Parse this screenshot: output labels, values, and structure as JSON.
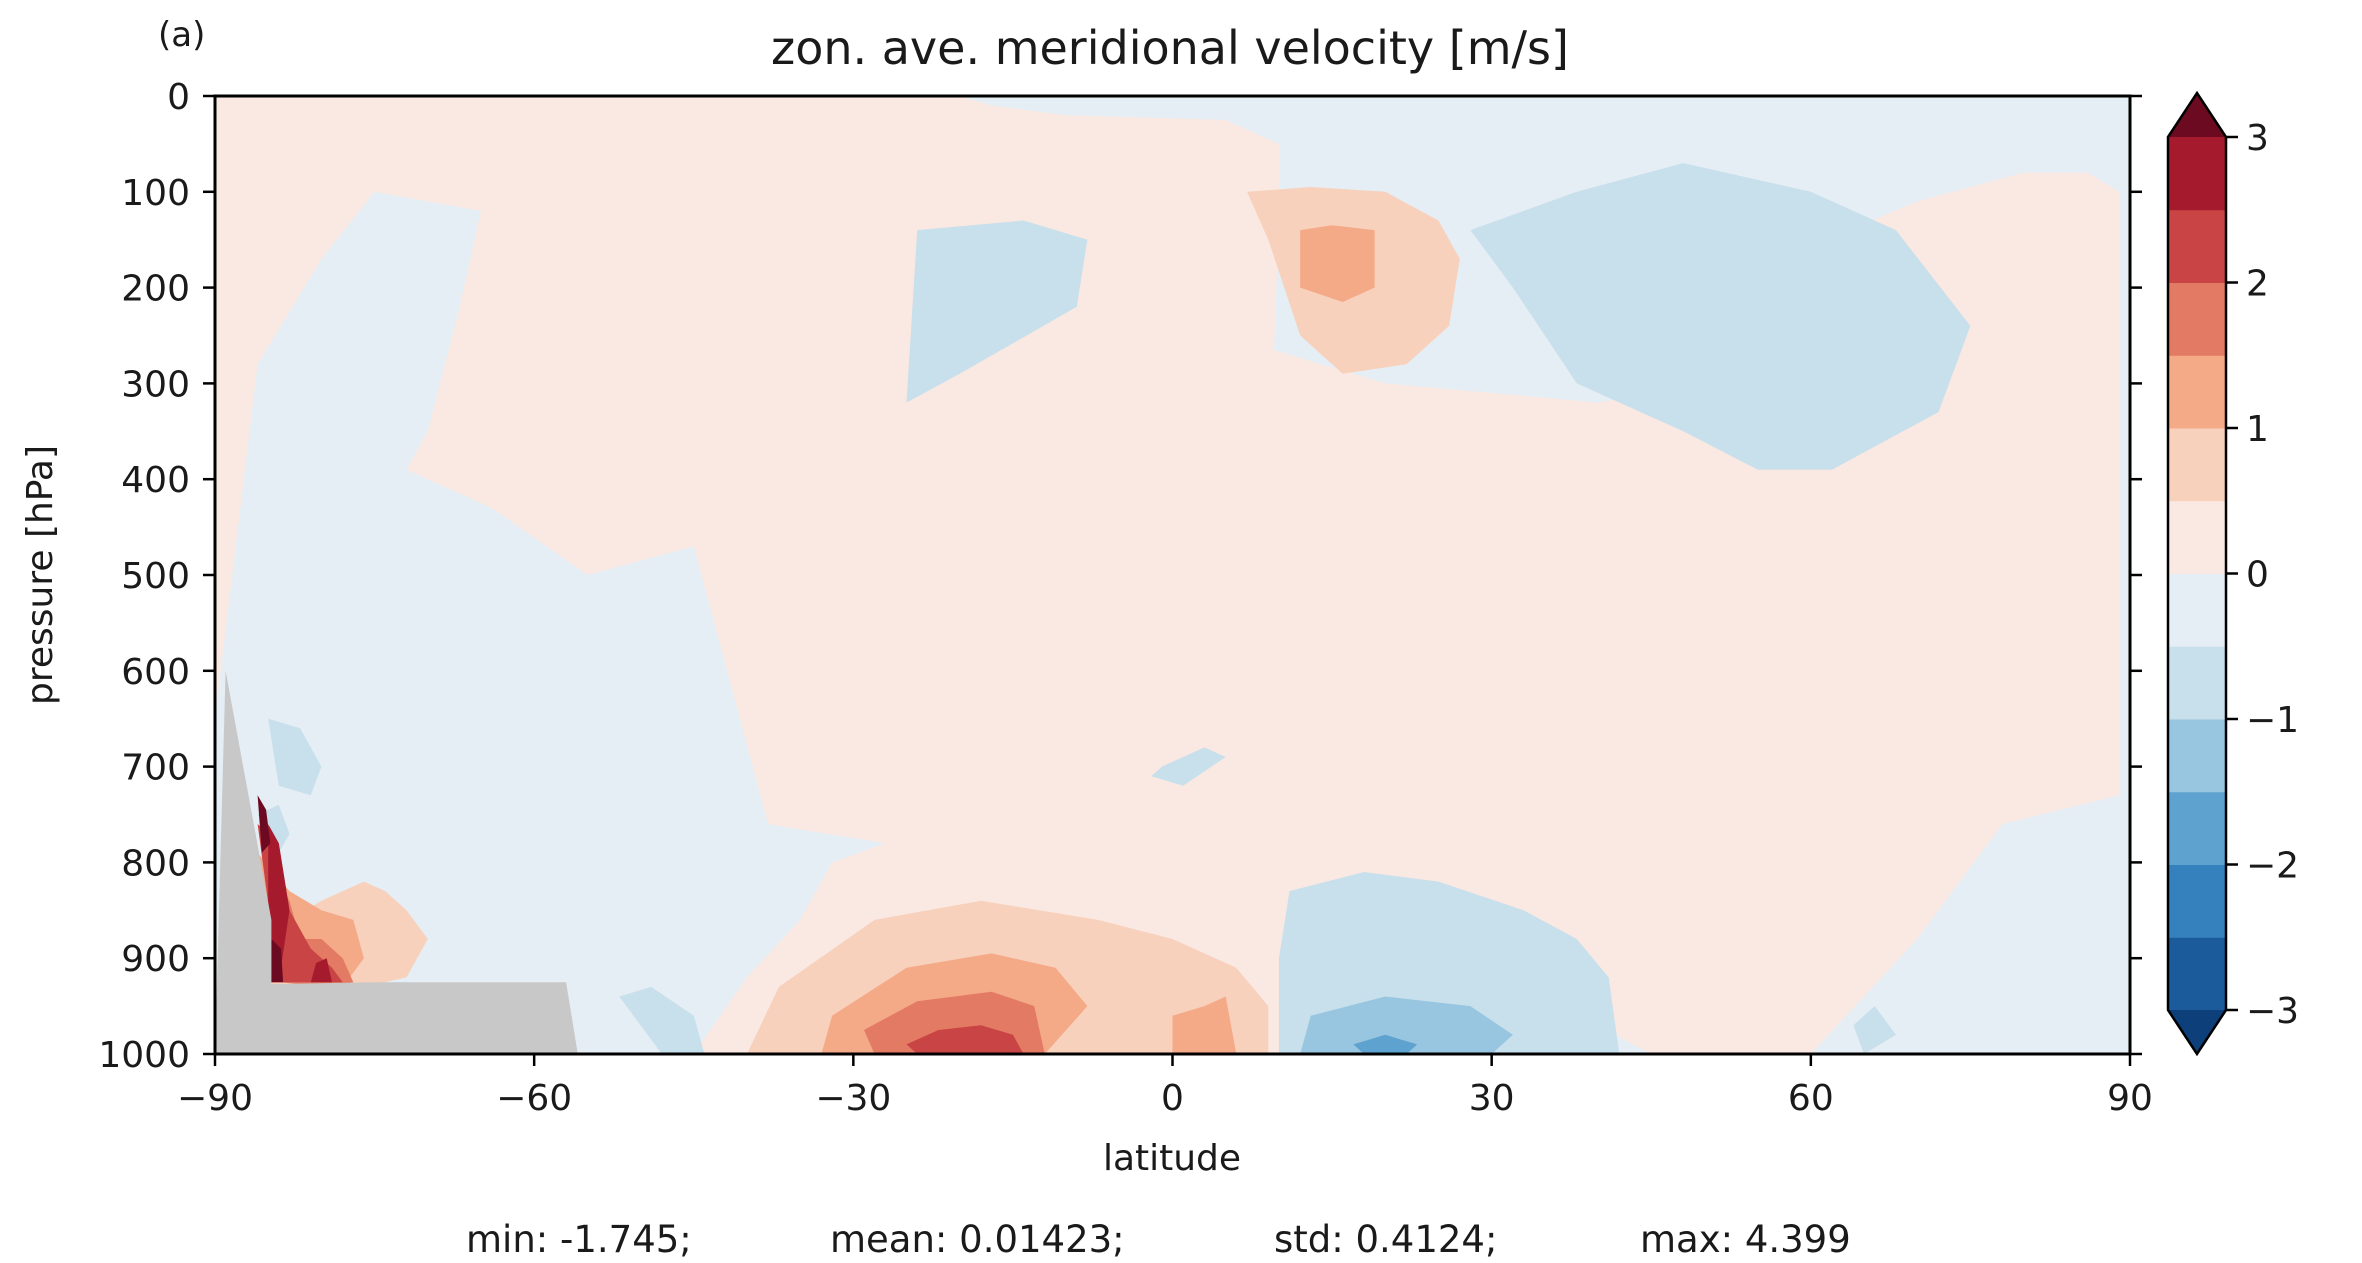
{
  "chart_data": {
    "type": "heatmap",
    "panel_label": "(a)",
    "title": "zon. ave. meridional velocity [m/s]",
    "xlabel": "latitude",
    "ylabel": "pressure [hPa]",
    "xlim": [
      -90,
      90
    ],
    "ylim": [
      1000,
      0
    ],
    "y_inverted": true,
    "grid": false,
    "x_ticks": [
      -90,
      -60,
      -30,
      0,
      30,
      60,
      90
    ],
    "x_tick_labels": [
      "−90",
      "−60",
      "−30",
      "0",
      "30",
      "60",
      "90"
    ],
    "y_ticks": [
      0,
      100,
      200,
      300,
      400,
      500,
      600,
      700,
      800,
      900,
      1000
    ],
    "y_tick_labels": [
      "0",
      "100",
      "200",
      "300",
      "400",
      "500",
      "600",
      "700",
      "800",
      "900",
      "1000"
    ],
    "colorbar": {
      "levels": [
        -3.0,
        -2.5,
        -2.0,
        -1.5,
        -1.0,
        -0.5,
        0.0,
        0.5,
        1.0,
        1.5,
        2.0,
        2.5,
        3.0
      ],
      "extend": "both",
      "ticks": [
        -3,
        -2,
        -1,
        0,
        1,
        2,
        3
      ],
      "tick_labels": [
        "−3",
        "−2",
        "−1",
        "0",
        "1",
        "2",
        "3"
      ],
      "colors": [
        "#0d3f7a",
        "#1b5a9b",
        "#3581bd",
        "#5ea3cf",
        "#98c6e0",
        "#c8dfec",
        "#e5eef4",
        "#fae9e2",
        "#f8d1bd",
        "#f4a987",
        "#e37a63",
        "#c94444",
        "#a51b2d",
        "#6b0a20"
      ]
    },
    "stats": {
      "min": "min: -1.745;",
      "mean": "mean: 0.01423;",
      "std": "std: 0.4124;",
      "max": "max: 4.399"
    },
    "terrain_mask_color": "#c8c8c8",
    "terrain_mask": {
      "lat": [
        -90,
        -89,
        -84.7,
        -84.7,
        -75,
        -65,
        -57,
        -55.9
      ],
      "p": [
        1000,
        600,
        860,
        927,
        925,
        925,
        925,
        1000
      ]
    },
    "regions": [
      {
        "level": -0.25,
        "lat": [
          -52,
          -30,
          -9,
          -10,
          32,
          45,
          84,
          89,
          89,
          63,
          50,
          36,
          25,
          24,
          17,
          12,
          5,
          -1,
          -5,
          -7,
          -30,
          -44,
          -48,
          -55,
          -57,
          -59,
          -63,
          -66,
          -70,
          -75,
          -80,
          -85,
          -83,
          -85,
          -84,
          -87,
          -89,
          -89
        ],
        "p": [
          1000,
          1000,
          1000,
          1000,
          1000,
          1000,
          1000,
          1000,
          640,
          620,
          560,
          520,
          440,
          330,
          230,
          120,
          95,
          50,
          30,
          0,
          0,
          80,
          160,
          380,
          500,
          600,
          660,
          680,
          700,
          700,
          720,
          660,
          520,
          470,
          320,
          220,
          200,
          1000
        ]
      },
      {
        "level": 0.25,
        "lat": [
          -90,
          -86,
          -85,
          -73,
          -60,
          -55,
          -40,
          -25,
          -20,
          -17,
          -10,
          5,
          10,
          10,
          9,
          0,
          -5,
          -9,
          -8,
          8,
          20,
          40,
          50,
          55,
          70,
          80,
          86,
          89,
          89,
          78,
          70,
          60,
          45,
          33,
          22,
          20,
          15,
          8,
          0,
          -10,
          -20,
          -30,
          -45,
          -40,
          -35,
          -32,
          -27,
          -38,
          -45,
          -55,
          -64,
          -72,
          -70,
          -67,
          -65,
          -75,
          -80,
          -86,
          -90
        ],
        "p": [
          0,
          0,
          0,
          0,
          0,
          0,
          0,
          0,
          0,
          10,
          20,
          25,
          50,
          130,
          420,
          460,
          440,
          400,
          290,
          260,
          300,
          320,
          300,
          180,
          110,
          80,
          80,
          100,
          730,
          760,
          880,
          1000,
          1000,
          930,
          900,
          1000,
          1000,
          1000,
          1000,
          1000,
          1000,
          1000,
          1000,
          920,
          860,
          800,
          780,
          760,
          470,
          500,
          430,
          390,
          350,
          220,
          120,
          100,
          170,
          280,
          650
        ]
      },
      {
        "level": -0.75,
        "lat": [
          -85,
          -82,
          -80,
          -81,
          -84
        ],
        "p": [
          650,
          660,
          700,
          730,
          720
        ]
      },
      {
        "level": -0.75,
        "lat": [
          -86,
          -84,
          -83,
          -84
        ],
        "p": [
          750,
          740,
          770,
          790
        ]
      },
      {
        "level": -0.75,
        "lat": [
          -24,
          -14,
          -8,
          -9,
          -20,
          -25
        ],
        "p": [
          140,
          130,
          150,
          220,
          290,
          320
        ]
      },
      {
        "level": -0.75,
        "lat": [
          -1,
          3,
          5,
          1,
          -2
        ],
        "p": [
          700,
          680,
          690,
          720,
          710
        ]
      },
      {
        "level": -0.75,
        "lat": [
          11,
          18,
          25,
          33,
          38,
          41,
          42,
          10,
          10
        ],
        "p": [
          830,
          810,
          820,
          850,
          880,
          920,
          1000,
          1000,
          900
        ]
      },
      {
        "level": -0.75,
        "lat": [
          28,
          38,
          48,
          60,
          68,
          75,
          72,
          62,
          55,
          48,
          38,
          32
        ],
        "p": [
          140,
          100,
          70,
          100,
          140,
          240,
          330,
          390,
          390,
          350,
          300,
          200
        ]
      },
      {
        "level": -0.75,
        "lat": [
          -52,
          -49,
          -45,
          -44,
          -48
        ],
        "p": [
          940,
          930,
          960,
          1000,
          1000
        ]
      },
      {
        "level": -0.75,
        "lat": [
          64,
          66,
          68,
          65
        ],
        "p": [
          970,
          950,
          980,
          1000
        ]
      },
      {
        "level": -1.25,
        "lat": [
          13,
          20,
          28,
          32,
          30,
          12
        ],
        "p": [
          960,
          940,
          950,
          980,
          1000,
          1000
        ]
      },
      {
        "level": -1.75,
        "lat": [
          17,
          20,
          23,
          22,
          18
        ],
        "p": [
          990,
          980,
          990,
          1000,
          1000
        ]
      },
      {
        "level": 0.75,
        "lat": [
          -37,
          -28,
          -18,
          -7,
          0,
          6,
          9,
          9,
          -1,
          -10,
          -20,
          -40
        ],
        "p": [
          930,
          860,
          840,
          860,
          880,
          910,
          950,
          1000,
          1000,
          1000,
          1000,
          1000
        ]
      },
      {
        "level": 0.75,
        "lat": [
          7,
          13,
          20,
          25,
          27,
          26,
          22,
          16,
          12,
          9
        ],
        "p": [
          100,
          95,
          100,
          130,
          170,
          240,
          280,
          290,
          250,
          150
        ]
      },
      {
        "level": 0.75,
        "lat": [
          -80,
          -76,
          -74,
          -72,
          -70,
          -72,
          -80,
          -85,
          -86
        ],
        "p": [
          840,
          820,
          830,
          850,
          880,
          920,
          940,
          930,
          880
        ]
      },
      {
        "level": 1.25,
        "lat": [
          -32,
          -25,
          -17,
          -11,
          -8,
          -12,
          -25,
          -33
        ],
        "p": [
          960,
          910,
          895,
          910,
          950,
          1000,
          1000,
          1000
        ]
      },
      {
        "level": 1.25,
        "lat": [
          0,
          3,
          5,
          6,
          0
        ],
        "p": [
          960,
          950,
          940,
          1000,
          1000
        ]
      },
      {
        "level": 1.25,
        "lat": [
          12,
          15,
          19,
          19,
          16,
          12
        ],
        "p": [
          140,
          135,
          140,
          200,
          215,
          200
        ]
      },
      {
        "level": 1.25,
        "lat": [
          -86,
          -83,
          -80,
          -77,
          -76,
          -78,
          -82,
          -86
        ],
        "p": [
          790,
          830,
          850,
          860,
          900,
          930,
          930,
          900
        ]
      },
      {
        "level": 1.75,
        "lat": [
          -29,
          -24,
          -17,
          -13,
          -12,
          -20,
          -28
        ],
        "p": [
          975,
          945,
          935,
          950,
          1000,
          1000,
          1000
        ]
      },
      {
        "level": 1.75,
        "lat": [
          -85,
          -83,
          -82,
          -80,
          -78,
          -77,
          -79,
          -84
        ],
        "p": [
          800,
          840,
          880,
          880,
          900,
          925,
          930,
          925
        ]
      },
      {
        "level": 2.25,
        "lat": [
          -25,
          -22,
          -18,
          -15,
          -14,
          -24
        ],
        "p": [
          990,
          975,
          970,
          980,
          1000,
          1000
        ]
      },
      {
        "level": 2.25,
        "lat": [
          -86,
          -84,
          -83,
          -81,
          -79,
          -78,
          -84
        ],
        "p": [
          760,
          780,
          850,
          890,
          910,
          925,
          925
        ]
      },
      {
        "level": 2.75,
        "lat": [
          -85,
          -84,
          -83,
          -84,
          -85
        ],
        "p": [
          760,
          780,
          850,
          925,
          925
        ]
      },
      {
        "level": 2.75,
        "lat": [
          -80.5,
          -79.5,
          -79,
          -81
        ],
        "p": [
          905,
          900,
          925,
          925
        ]
      },
      {
        "level": 3.25,
        "lat": [
          -86,
          -85.2,
          -84.8,
          -85.6
        ],
        "p": [
          730,
          745,
          780,
          790
        ]
      },
      {
        "level": 3.25,
        "lat": [
          -84.7,
          -83.8,
          -83.6,
          -84.7
        ],
        "p": [
          880,
          890,
          925,
          925
        ]
      }
    ]
  }
}
